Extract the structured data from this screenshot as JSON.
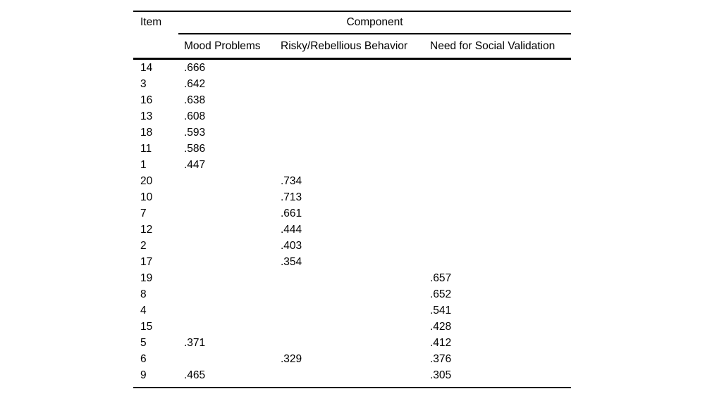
{
  "table": {
    "item_header": "Item",
    "group_header": "Component",
    "columns": [
      "Mood Problems",
      "Risky/Rebellious Behavior",
      "Need for Social Validation"
    ],
    "rows": [
      {
        "item": "14",
        "mood": ".666",
        "risky": "",
        "social": ""
      },
      {
        "item": "3",
        "mood": ".642",
        "risky": "",
        "social": ""
      },
      {
        "item": "16",
        "mood": ".638",
        "risky": "",
        "social": ""
      },
      {
        "item": "13",
        "mood": ".608",
        "risky": "",
        "social": ""
      },
      {
        "item": "18",
        "mood": ".593",
        "risky": "",
        "social": ""
      },
      {
        "item": "11",
        "mood": ".586",
        "risky": "",
        "social": ""
      },
      {
        "item": "1",
        "mood": ".447",
        "risky": "",
        "social": ""
      },
      {
        "item": "20",
        "mood": "",
        "risky": ".734",
        "social": ""
      },
      {
        "item": "10",
        "mood": "",
        "risky": ".713",
        "social": ""
      },
      {
        "item": "7",
        "mood": "",
        "risky": ".661",
        "social": ""
      },
      {
        "item": "12",
        "mood": "",
        "risky": ".444",
        "social": ""
      },
      {
        "item": "2",
        "mood": "",
        "risky": ".403",
        "social": ""
      },
      {
        "item": "17",
        "mood": "",
        "risky": ".354",
        "social": ""
      },
      {
        "item": "19",
        "mood": "",
        "risky": "",
        "social": ".657"
      },
      {
        "item": "8",
        "mood": "",
        "risky": "",
        "social": ".652"
      },
      {
        "item": "4",
        "mood": "",
        "risky": "",
        "social": ".541"
      },
      {
        "item": "15",
        "mood": "",
        "risky": "",
        "social": ".428"
      },
      {
        "item": "5",
        "mood": ".371",
        "risky": "",
        "social": ".412"
      },
      {
        "item": "6",
        "mood": "",
        "risky": ".329",
        "social": ".376"
      },
      {
        "item": "9",
        "mood": ".465",
        "risky": "",
        "social": ".305"
      }
    ]
  },
  "colors": {
    "background": "#ffffff",
    "text": "#000000",
    "rule": "#000000"
  }
}
